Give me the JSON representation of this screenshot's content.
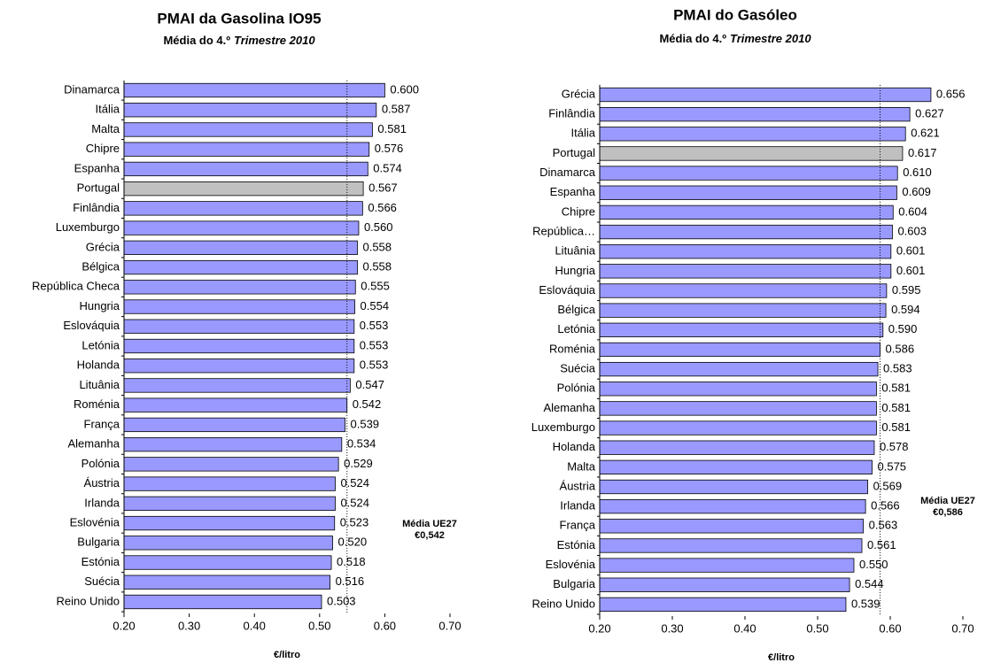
{
  "chart_data": [
    {
      "type": "bar",
      "orientation": "horizontal",
      "title": "PMAI da Gasolina IO95",
      "subtitle": [
        "Média do 4.º",
        "Trimestre 2010"
      ],
      "x_label": "€/litro",
      "categories": [
        "Dinamarca",
        "Itália",
        "Malta",
        "Chipre",
        "Espanha",
        "Portugal",
        "Finlândia",
        "Luxemburgo",
        "Grécia",
        "Bélgica",
        "República Checa",
        "Hungria",
        "Eslováquia",
        "Letónia",
        "Holanda",
        "Lituânia",
        "Roménia",
        "França",
        "Alemanha",
        "Polónia",
        "Áustria",
        "Irlanda",
        "Eslovénia",
        "Bulgaria",
        "Estónia",
        "Suécia",
        "Reino Unido"
      ],
      "values": [
        0.6,
        0.587,
        0.581,
        0.576,
        0.574,
        0.567,
        0.566,
        0.56,
        0.558,
        0.558,
        0.555,
        0.554,
        0.553,
        0.553,
        0.553,
        0.547,
        0.542,
        0.539,
        0.534,
        0.529,
        0.524,
        0.524,
        0.523,
        0.52,
        0.518,
        0.516,
        0.503
      ],
      "value_labels": [
        "0.600",
        "0.587",
        "0.581",
        "0.576",
        "0.574",
        "0.567",
        "0.566",
        "0.560",
        "0.558",
        "0.558",
        "0.555",
        "0.554",
        "0.553",
        "0.553",
        "0.553",
        "0.547",
        "0.542",
        "0.539",
        "0.534",
        "0.529",
        "0.524",
        "0.524",
        "0.523",
        "0.520",
        "0.518",
        "0.516",
        "0.503"
      ],
      "colors": [
        "#9999ff",
        "#9999ff",
        "#9999ff",
        "#9999ff",
        "#9999ff",
        "#c0c0c0",
        "#9999ff",
        "#9999ff",
        "#9999ff",
        "#9999ff",
        "#9999ff",
        "#9999ff",
        "#9999ff",
        "#9999ff",
        "#9999ff",
        "#9999ff",
        "#9999ff",
        "#9999ff",
        "#9999ff",
        "#9999ff",
        "#9999ff",
        "#9999ff",
        "#9999ff",
        "#9999ff",
        "#9999ff",
        "#9999ff",
        "#9999ff"
      ],
      "xlim": [
        0.2,
        0.7
      ],
      "xticks": [
        {
          "value": 0.2,
          "label": "0.20"
        },
        {
          "value": 0.3,
          "label": "0.30"
        },
        {
          "value": 0.4,
          "label": "0.40"
        },
        {
          "value": 0.5,
          "label": "0.50"
        },
        {
          "value": 0.6,
          "label": "0.60"
        },
        {
          "value": 0.7,
          "label": "0.70"
        }
      ],
      "reference_line": 0.542,
      "annotation": [
        "Média UE27",
        "€0,542"
      ]
    },
    {
      "type": "bar",
      "orientation": "horizontal",
      "title": "PMAI do Gasóleo",
      "subtitle": [
        "Média do 4.º",
        "Trimestre 2010"
      ],
      "x_label": "€/litro",
      "categories": [
        "Grécia",
        "Finlândia",
        "Itália",
        "Portugal",
        "Dinamarca",
        "Espanha",
        "Chipre",
        "República…",
        "Lituânia",
        "Hungria",
        "Eslováquia",
        "Bélgica",
        "Letónia",
        "Roménia",
        "Suécia",
        "Polónia",
        "Alemanha",
        "Luxemburgo",
        "Holanda",
        "Malta",
        "Áustria",
        "Irlanda",
        "França",
        "Estónia",
        "Eslovénia",
        "Bulgaria",
        "Reino Unido"
      ],
      "values": [
        0.656,
        0.627,
        0.621,
        0.617,
        0.61,
        0.609,
        0.604,
        0.603,
        0.601,
        0.601,
        0.595,
        0.594,
        0.59,
        0.586,
        0.583,
        0.581,
        0.581,
        0.581,
        0.578,
        0.575,
        0.569,
        0.566,
        0.563,
        0.561,
        0.55,
        0.544,
        0.539
      ],
      "value_labels": [
        "0.656",
        "0.627",
        "0.621",
        "0.617",
        "0.610",
        "0.609",
        "0.604",
        "0.603",
        "0.601",
        "0.601",
        "0.595",
        "0.594",
        "0.590",
        "0.586",
        "0.583",
        "0.581",
        "0.581",
        "0.581",
        "0.578",
        "0.575",
        "0.569",
        "0.566",
        "0.563",
        "0.561",
        "0.550",
        "0.544",
        "0.539"
      ],
      "colors": [
        "#9999ff",
        "#9999ff",
        "#9999ff",
        "#c0c0c0",
        "#9999ff",
        "#9999ff",
        "#9999ff",
        "#9999ff",
        "#9999ff",
        "#9999ff",
        "#9999ff",
        "#9999ff",
        "#9999ff",
        "#9999ff",
        "#9999ff",
        "#9999ff",
        "#9999ff",
        "#9999ff",
        "#9999ff",
        "#9999ff",
        "#9999ff",
        "#9999ff",
        "#9999ff",
        "#9999ff",
        "#9999ff",
        "#9999ff",
        "#9999ff"
      ],
      "xlim": [
        0.2,
        0.7
      ],
      "xticks": [
        {
          "value": 0.2,
          "label": "0.20"
        },
        {
          "value": 0.3,
          "label": "0.30"
        },
        {
          "value": 0.4,
          "label": "0.40"
        },
        {
          "value": 0.5,
          "label": "0.50"
        },
        {
          "value": 0.6,
          "label": "0.60"
        },
        {
          "value": 0.7,
          "label": "0.70"
        }
      ],
      "reference_line": 0.586,
      "annotation": [
        "Média UE27",
        "€0,586"
      ]
    }
  ]
}
